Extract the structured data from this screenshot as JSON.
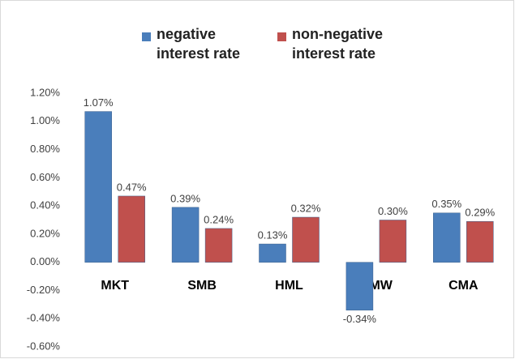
{
  "chart_data": {
    "type": "bar",
    "categories": [
      "MKT",
      "SMB",
      "HML",
      "RMW",
      "CMA"
    ],
    "series": [
      {
        "name": "negative interest rate",
        "color": "#4a7ebb",
        "values": [
          1.07,
          0.39,
          0.13,
          -0.34,
          0.35
        ],
        "value_labels": [
          "1.07%",
          "0.39%",
          "0.13%",
          "-0.34%",
          "0.35%"
        ]
      },
      {
        "name": "non-negative interest rate",
        "color": "#c0504d",
        "values": [
          0.47,
          0.24,
          0.32,
          0.3,
          0.29
        ],
        "value_labels": [
          "0.47%",
          "0.24%",
          "0.32%",
          "0.30%",
          "0.29%"
        ]
      }
    ],
    "ylim": [
      -0.6,
      1.2
    ],
    "yticks": [
      {
        "value": 1.2,
        "label": "1.20%"
      },
      {
        "value": 1.0,
        "label": "1.00%"
      },
      {
        "value": 0.8,
        "label": "0.80%"
      },
      {
        "value": 0.6,
        "label": "0.60%"
      },
      {
        "value": 0.4,
        "label": "0.40%"
      },
      {
        "value": 0.2,
        "label": "0.20%"
      },
      {
        "value": 0,
        "label": "0.00%"
      },
      {
        "value": -0.2,
        "label": "-0.20%"
      },
      {
        "value": -0.4,
        "label": "-0.40%"
      },
      {
        "value": -0.6,
        "label": "-0.60%"
      }
    ],
    "grid": false
  }
}
